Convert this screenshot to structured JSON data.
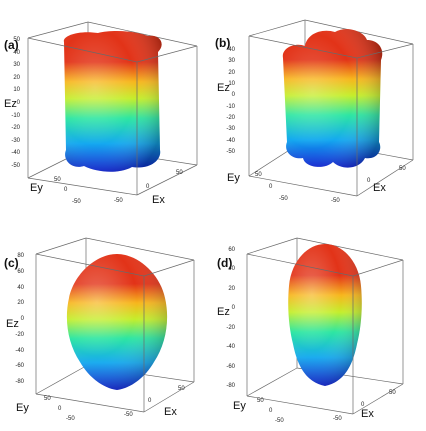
{
  "panels": [
    {
      "id": "a",
      "label": "(a)",
      "shape": "square",
      "z_ticks": [
        "50",
        "40",
        "30",
        "20",
        "10",
        "0",
        "-10",
        "-20",
        "-30",
        "-40",
        "-50"
      ],
      "ey_ticks": [
        "50",
        "0",
        "-50"
      ],
      "ex_ticks": [
        "-50",
        "0",
        "50"
      ],
      "xlabel": "Ex",
      "ylabel": "Ey",
      "zlabel": "Ez"
    },
    {
      "id": "b",
      "label": "(b)",
      "shape": "cross",
      "z_ticks": [
        "40",
        "30",
        "20",
        "10",
        "0",
        "-10",
        "-20",
        "-30",
        "-40",
        "-50"
      ],
      "ey_ticks": [
        "50",
        "0",
        "-50"
      ],
      "ex_ticks": [
        "-50",
        "0",
        "50"
      ],
      "xlabel": "Ex",
      "ylabel": "Ey",
      "zlabel": "Ez"
    },
    {
      "id": "c",
      "label": "(c)",
      "shape": "round",
      "z_ticks": [
        "80",
        "60",
        "40",
        "20",
        "0",
        "-20",
        "-40",
        "-60",
        "-80"
      ],
      "ey_ticks": [
        "50",
        "0",
        "-50"
      ],
      "ex_ticks": [
        "-50",
        "0",
        "50"
      ],
      "xlabel": "Ex",
      "ylabel": "Ey",
      "zlabel": "Ez"
    },
    {
      "id": "d",
      "label": "(d)",
      "shape": "egg",
      "z_ticks": [
        "60",
        "40",
        "20",
        "0",
        "-20",
        "-40",
        "-60",
        "-80"
      ],
      "ey_ticks": [
        "50",
        "0",
        "-50"
      ],
      "ex_ticks": [
        "-50",
        "0",
        "50"
      ],
      "xlabel": "Ex",
      "ylabel": "Ey",
      "zlabel": "Ez"
    }
  ],
  "colormap": [
    "#0b1ed6",
    "#14a9f0",
    "#2de6a2",
    "#c4ee2b",
    "#f7b61c",
    "#e23318"
  ]
}
